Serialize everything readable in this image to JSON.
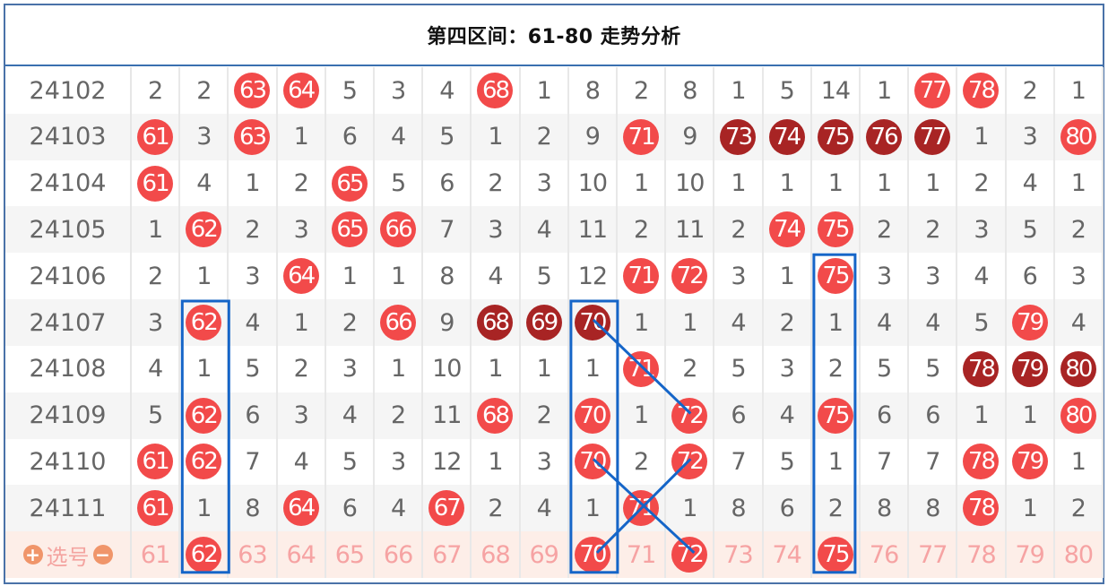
{
  "title": "第四区间：61-80  走势分析",
  "colors": {
    "hit_ball": "#f24a4a",
    "repeat_ball": "#a82424",
    "frame": "#4a72a8",
    "highlight": "#1565c8",
    "select_text": "#f6a3a3",
    "select_bg": "#fdeee8",
    "select_icon": "#f0956a"
  },
  "columns": [
    "61",
    "62",
    "63",
    "64",
    "65",
    "66",
    "67",
    "68",
    "69",
    "70",
    "71",
    "72",
    "73",
    "74",
    "75",
    "76",
    "77",
    "78",
    "79",
    "80"
  ],
  "rows": [
    {
      "issue": "24102",
      "cells": [
        "2",
        "2",
        "r63",
        "r64",
        "5",
        "3",
        "4",
        "r68",
        "1",
        "8",
        "2",
        "8",
        "1",
        "5",
        "14",
        "1",
        "r77",
        "r78",
        "2",
        "1"
      ]
    },
    {
      "issue": "24103",
      "cells": [
        "r61",
        "3",
        "r63",
        "1",
        "6",
        "4",
        "5",
        "1",
        "2",
        "9",
        "r71",
        "9",
        "d73",
        "d74",
        "d75",
        "d76",
        "d77",
        "1",
        "3",
        "r80"
      ]
    },
    {
      "issue": "24104",
      "cells": [
        "r61",
        "4",
        "1",
        "2",
        "r65",
        "5",
        "6",
        "2",
        "3",
        "10",
        "1",
        "10",
        "1",
        "1",
        "1",
        "1",
        "1",
        "2",
        "4",
        "1"
      ]
    },
    {
      "issue": "24105",
      "cells": [
        "1",
        "r62",
        "2",
        "3",
        "r65",
        "r66",
        "7",
        "3",
        "4",
        "11",
        "2",
        "11",
        "2",
        "r74",
        "r75",
        "2",
        "2",
        "3",
        "5",
        "2"
      ]
    },
    {
      "issue": "24106",
      "cells": [
        "2",
        "1",
        "3",
        "r64",
        "1",
        "1",
        "8",
        "4",
        "5",
        "12",
        "r71",
        "r72",
        "3",
        "1",
        "r75",
        "3",
        "3",
        "4",
        "6",
        "3"
      ]
    },
    {
      "issue": "24107",
      "cells": [
        "3",
        "r62",
        "4",
        "1",
        "2",
        "r66",
        "9",
        "d68",
        "d69",
        "d70",
        "1",
        "1",
        "4",
        "2",
        "1",
        "4",
        "4",
        "5",
        "r79",
        "4"
      ]
    },
    {
      "issue": "24108",
      "cells": [
        "4",
        "1",
        "5",
        "2",
        "3",
        "1",
        "10",
        "1",
        "1",
        "1",
        "r71",
        "2",
        "5",
        "3",
        "2",
        "5",
        "5",
        "d78",
        "d79",
        "d80"
      ]
    },
    {
      "issue": "24109",
      "cells": [
        "5",
        "r62",
        "6",
        "3",
        "4",
        "2",
        "11",
        "r68",
        "2",
        "r70",
        "1",
        "r72",
        "6",
        "4",
        "r75",
        "6",
        "6",
        "1",
        "1",
        "r80"
      ]
    },
    {
      "issue": "24110",
      "cells": [
        "r61",
        "r62",
        "7",
        "4",
        "5",
        "3",
        "12",
        "1",
        "3",
        "r70",
        "2",
        "r72",
        "7",
        "5",
        "1",
        "7",
        "7",
        "r78",
        "r79",
        "1"
      ]
    },
    {
      "issue": "24111",
      "cells": [
        "r61",
        "1",
        "8",
        "r64",
        "6",
        "4",
        "r67",
        "2",
        "4",
        "1",
        "r71",
        "1",
        "8",
        "6",
        "2",
        "8",
        "8",
        "r78",
        "1",
        "2"
      ]
    }
  ],
  "select_row": {
    "label": "选号",
    "add_icon": "plus-circle-icon",
    "remove_icon": "minus-circle-icon",
    "add_symbol": "+",
    "remove_symbol": "−",
    "selected": [
      "62",
      "70",
      "72",
      "75"
    ]
  }
}
